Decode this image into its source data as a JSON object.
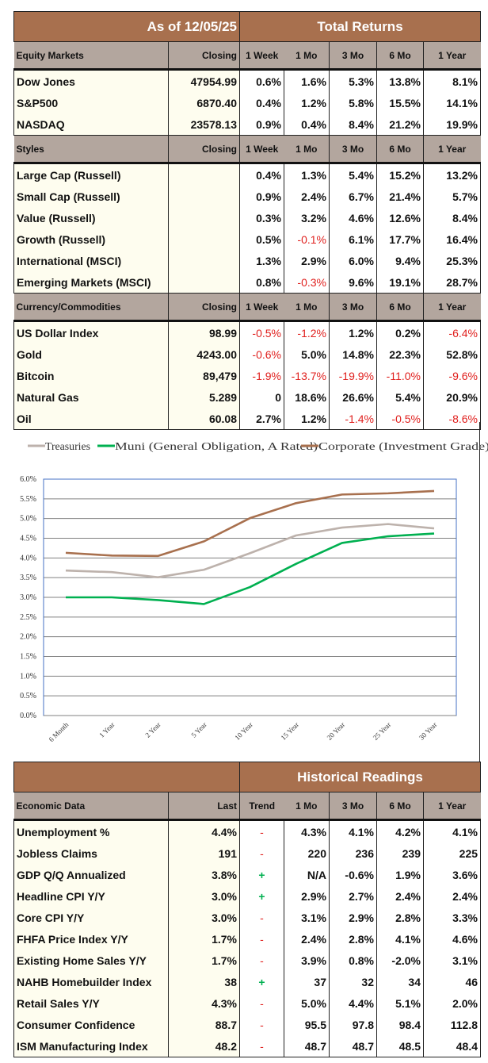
{
  "returns": {
    "as_of": "As of  12/05/25",
    "title": "Total Returns",
    "sections": [
      {
        "header": [
          "Equity Markets",
          "Closing",
          "1 Week",
          "1 Mo",
          "3 Mo",
          "6 Mo",
          "1 Year"
        ],
        "rows": [
          [
            "Dow Jones",
            "47954.99",
            "0.6%",
            "1.6%",
            "5.3%",
            "13.8%",
            "8.1%"
          ],
          [
            "S&P500",
            "6870.40",
            "0.4%",
            "1.2%",
            "5.8%",
            "15.5%",
            "14.1%"
          ],
          [
            "NASDAQ",
            "23578.13",
            "0.9%",
            "0.4%",
            "8.4%",
            "21.2%",
            "19.9%"
          ]
        ]
      },
      {
        "header": [
          "Styles",
          "Closing",
          "1 Week",
          "1 Mo",
          "3 Mo",
          "6 Mo",
          "1 Year"
        ],
        "rows": [
          [
            "Large Cap (Russell)",
            "",
            "0.4%",
            "1.3%",
            "5.4%",
            "15.2%",
            "13.2%"
          ],
          [
            "Small Cap (Russell)",
            "",
            "0.9%",
            "2.4%",
            "6.7%",
            "21.4%",
            "5.7%"
          ],
          [
            "Value (Russell)",
            "",
            "0.3%",
            "3.2%",
            "4.6%",
            "12.6%",
            "8.4%"
          ],
          [
            "Growth (Russell)",
            "",
            "0.5%",
            "-0.1%",
            "6.1%",
            "17.7%",
            "16.4%"
          ],
          [
            "International (MSCI)",
            "",
            "1.3%",
            "2.9%",
            "6.0%",
            "9.4%",
            "25.3%"
          ],
          [
            "Emerging Markets (MSCI)",
            "",
            "0.8%",
            "-0.3%",
            "9.6%",
            "19.1%",
            "28.7%"
          ]
        ]
      },
      {
        "header": [
          "Currency/Commodities",
          "Closing",
          "1 Week",
          "1 Mo",
          "3 Mo",
          "6 Mo",
          "1 Year"
        ],
        "rows": [
          [
            "US Dollar Index",
            "98.99",
            "-0.5%",
            "-1.2%",
            "1.2%",
            "0.2%",
            "-6.4%"
          ],
          [
            "Gold",
            "4243.00",
            "-0.6%",
            "5.0%",
            "14.8%",
            "22.3%",
            "52.8%"
          ],
          [
            "Bitcoin",
            "89,479",
            "-1.9%",
            "-13.7%",
            "-19.9%",
            "-11.0%",
            "-9.6%"
          ],
          [
            "Natural Gas",
            "5.289",
            "0",
            "18.6%",
            "26.6%",
            "5.4%",
            "20.9%"
          ],
          [
            "Oil",
            "60.08",
            "2.7%",
            "1.2%",
            "-1.4%",
            "-0.5%",
            "-8.6%"
          ]
        ]
      }
    ]
  },
  "chart_data": {
    "type": "line",
    "categories": [
      "6 Month",
      "1 Year",
      "2 Year",
      "5 Year",
      "10 Year",
      "15 Year",
      "20 Year",
      "25 Year",
      "30 Year"
    ],
    "ylim": [
      0,
      6.0
    ],
    "yticks": [
      "0.0%",
      "0.5%",
      "1.0%",
      "1.5%",
      "2.0%",
      "2.5%",
      "3.0%",
      "3.5%",
      "4.0%",
      "4.5%",
      "5.0%",
      "5.5%",
      "6.0%"
    ],
    "grid": true,
    "legend_position": "top",
    "series": [
      {
        "name": "Treasuries",
        "color": "#BDB2AC",
        "values": [
          3.68,
          3.64,
          3.51,
          3.7,
          4.12,
          4.57,
          4.77,
          4.86,
          4.75
        ]
      },
      {
        "name": "Muni (General Obligation, A Rated)",
        "color": "#00B050",
        "values": [
          3.0,
          3.0,
          2.93,
          2.83,
          3.26,
          3.85,
          4.38,
          4.55,
          4.62
        ]
      },
      {
        "name": "Corporate (Investment Grade)",
        "color": "#A8704E",
        "values": [
          4.13,
          4.06,
          4.05,
          4.42,
          5.01,
          5.39,
          5.61,
          5.64,
          5.7
        ]
      }
    ]
  },
  "economic": {
    "title": "Historical Readings",
    "header": [
      "Economic Data",
      "Last",
      "Trend",
      "1 Mo",
      "3 Mo",
      "6 Mo",
      "1 Year"
    ],
    "rows": [
      [
        "Unemployment %",
        "4.4%",
        "-",
        "4.3%",
        "4.1%",
        "4.2%",
        "4.1%"
      ],
      [
        "Jobless Claims",
        "191",
        "-",
        "220",
        "236",
        "239",
        "225"
      ],
      [
        "GDP Q/Q Annualized",
        "3.8%",
        "+",
        "N/A",
        "-0.6%",
        "1.9%",
        "3.6%"
      ],
      [
        "Headline CPI Y/Y",
        "3.0%",
        "+",
        "2.9%",
        "2.7%",
        "2.4%",
        "2.4%"
      ],
      [
        "Core CPI Y/Y",
        "3.0%",
        "-",
        "3.1%",
        "2.9%",
        "2.8%",
        "3.3%"
      ],
      [
        "FHFA Price Index Y/Y",
        "1.7%",
        "-",
        "2.4%",
        "2.8%",
        "4.1%",
        "4.6%"
      ],
      [
        "Existing Home Sales Y/Y",
        "1.7%",
        "-",
        "3.9%",
        "0.8%",
        "-2.0%",
        "3.1%"
      ],
      [
        "NAHB Homebuilder Index",
        "38",
        "+",
        "37",
        "32",
        "34",
        "46"
      ],
      [
        "Retail Sales Y/Y",
        "4.3%",
        "-",
        "5.0%",
        "4.4%",
        "5.1%",
        "2.0%"
      ],
      [
        "Consumer Confidence",
        "88.7",
        "-",
        "95.5",
        "97.8",
        "98.4",
        "112.8"
      ],
      [
        "ISM Manufacturing Index",
        "48.2",
        "-",
        "48.7",
        "48.7",
        "48.5",
        "48.4"
      ]
    ]
  },
  "colors": {
    "header": "#A8704E",
    "subheader": "#B3A69E",
    "row_bg": "#FEFDEF",
    "negative": "#E0201E",
    "positive_trend": "#00B050"
  }
}
